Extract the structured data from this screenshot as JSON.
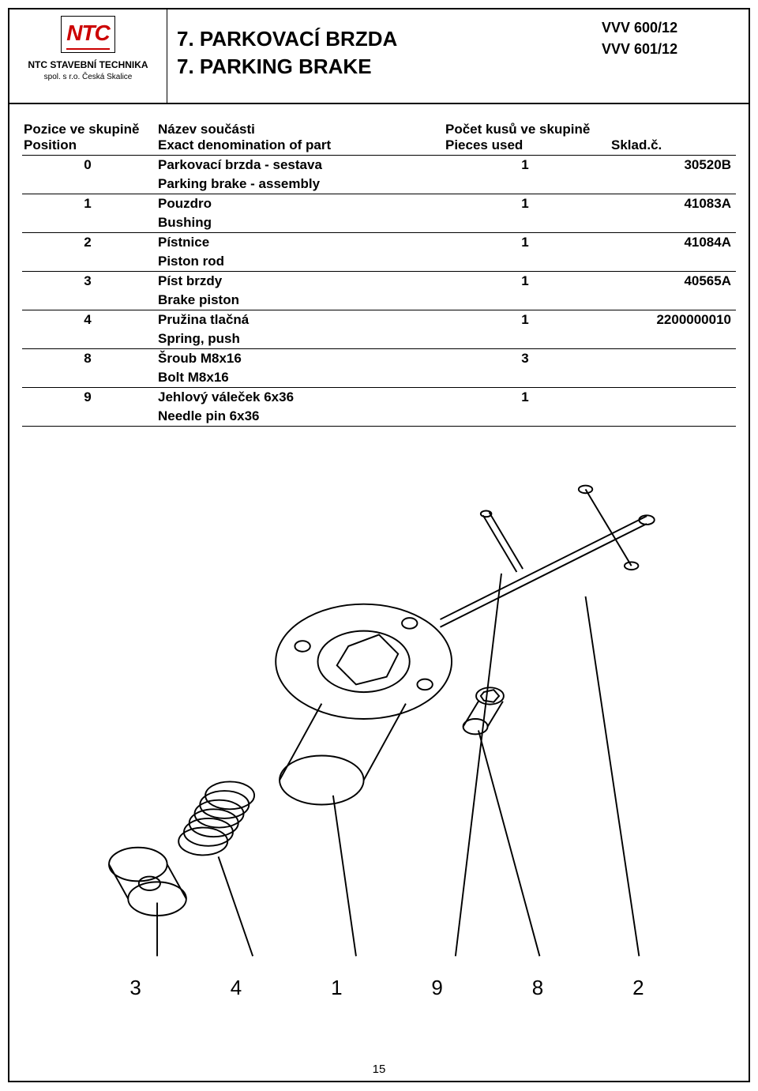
{
  "header": {
    "logo": {
      "brand": "NTC",
      "line2": "NTC STAVEBNÍ TECHNIKA",
      "line3": "spol. s r.o.  Česká Skalice"
    },
    "title_cz": "7. PARKOVACÍ BRZDA",
    "title_en": "7. PARKING BRAKE",
    "model1": "VVV 600/12",
    "model2": "VVV 601/12"
  },
  "table": {
    "head": {
      "pos_cz": "Pozice ve skupině",
      "pos_en": "Position",
      "name_cz": "Název součásti",
      "name_en": "Exact denomination of part",
      "pcs_cz": "Počet kusů ve skupině",
      "pcs_en": "Pieces used",
      "sku": "Sklad.č."
    },
    "rows": [
      {
        "pos": "0",
        "name_cz": "Parkovací brzda - sestava",
        "name_en": "Parking brake - assembly",
        "pcs": "1",
        "sku": "30520B"
      },
      {
        "pos": "1",
        "name_cz": "Pouzdro",
        "name_en": "Bushing",
        "pcs": "1",
        "sku": "41083A"
      },
      {
        "pos": "2",
        "name_cz": "Pístnice",
        "name_en": "Piston rod",
        "pcs": "1",
        "sku": "41084A"
      },
      {
        "pos": "3",
        "name_cz": "Píst brzdy",
        "name_en": "Brake piston",
        "pcs": "1",
        "sku": "40565A"
      },
      {
        "pos": "4",
        "name_cz": "Pružina tlačná",
        "name_en": "Spring, push",
        "pcs": "1",
        "sku": "2200000010"
      },
      {
        "pos": "8",
        "name_cz": "Šroub M8x16",
        "name_en": "Bolt M8x16",
        "pcs": "3",
        "sku": ""
      },
      {
        "pos": "9",
        "name_cz": "Jehlový váleček 6x36",
        "name_en": "Needle pin 6x36",
        "pcs": "1",
        "sku": ""
      }
    ]
  },
  "diagram": {
    "stroke": "#000000",
    "stroke_width": 2,
    "fill": "#ffffff",
    "callout_numbers": [
      "3",
      "4",
      "1",
      "9",
      "8",
      "2"
    ]
  },
  "page_number": "15"
}
